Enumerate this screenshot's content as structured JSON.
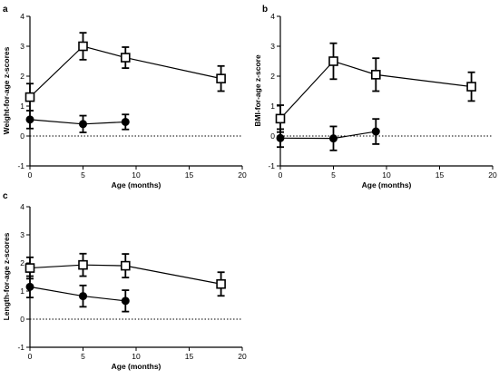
{
  "chart_data": [
    {
      "panel": "a",
      "type": "line",
      "xlabel": "Age (months)",
      "ylabel": "Weight-for-age z-scores",
      "xlim": [
        0,
        20
      ],
      "ylim": [
        -1,
        4
      ],
      "xticks": [
        0,
        5,
        10,
        15,
        20
      ],
      "yticks": [
        -1,
        0,
        1,
        2,
        3,
        4
      ],
      "reference_line": 0,
      "series": [
        {
          "marker": "open-square",
          "x": [
            0,
            5,
            9,
            18
          ],
          "y": [
            1.3,
            3.0,
            2.62,
            1.92
          ],
          "err": [
            0.45,
            0.45,
            0.35,
            0.42
          ]
        },
        {
          "marker": "filled-circle",
          "x": [
            0,
            5,
            9
          ],
          "y": [
            0.55,
            0.4,
            0.47
          ],
          "err": [
            0.3,
            0.28,
            0.25
          ]
        }
      ]
    },
    {
      "panel": "b",
      "type": "line",
      "xlabel": "Age (months)",
      "ylabel": "BMI-for-age z-score",
      "xlim": [
        0,
        20
      ],
      "ylim": [
        -1,
        4
      ],
      "xticks": [
        0,
        5,
        10,
        15,
        20
      ],
      "yticks": [
        -1,
        0,
        1,
        2,
        3,
        4
      ],
      "reference_line": 0,
      "series": [
        {
          "marker": "open-square",
          "x": [
            0,
            5,
            9,
            18
          ],
          "y": [
            0.58,
            2.5,
            2.05,
            1.65
          ],
          "err": [
            0.45,
            0.6,
            0.55,
            0.48
          ]
        },
        {
          "marker": "filled-circle",
          "x": [
            0,
            5,
            9
          ],
          "y": [
            -0.07,
            -0.08,
            0.15
          ],
          "err": [
            0.3,
            0.4,
            0.42
          ]
        }
      ]
    },
    {
      "panel": "c",
      "type": "line",
      "xlabel": "Age (months)",
      "ylabel": "Length-for-age z-scores",
      "xlim": [
        0,
        20
      ],
      "ylim": [
        -1,
        4
      ],
      "xticks": [
        0,
        5,
        10,
        15,
        20
      ],
      "yticks": [
        -1,
        0,
        1,
        2,
        3,
        4
      ],
      "reference_line": 0,
      "series": [
        {
          "marker": "open-square",
          "x": [
            0,
            5,
            9,
            18
          ],
          "y": [
            1.82,
            1.93,
            1.9,
            1.25
          ],
          "err": [
            0.38,
            0.4,
            0.42,
            0.42
          ]
        },
        {
          "marker": "filled-circle",
          "x": [
            0,
            5,
            9
          ],
          "y": [
            1.15,
            0.82,
            0.65
          ],
          "err": [
            0.38,
            0.38,
            0.38
          ]
        }
      ]
    }
  ]
}
